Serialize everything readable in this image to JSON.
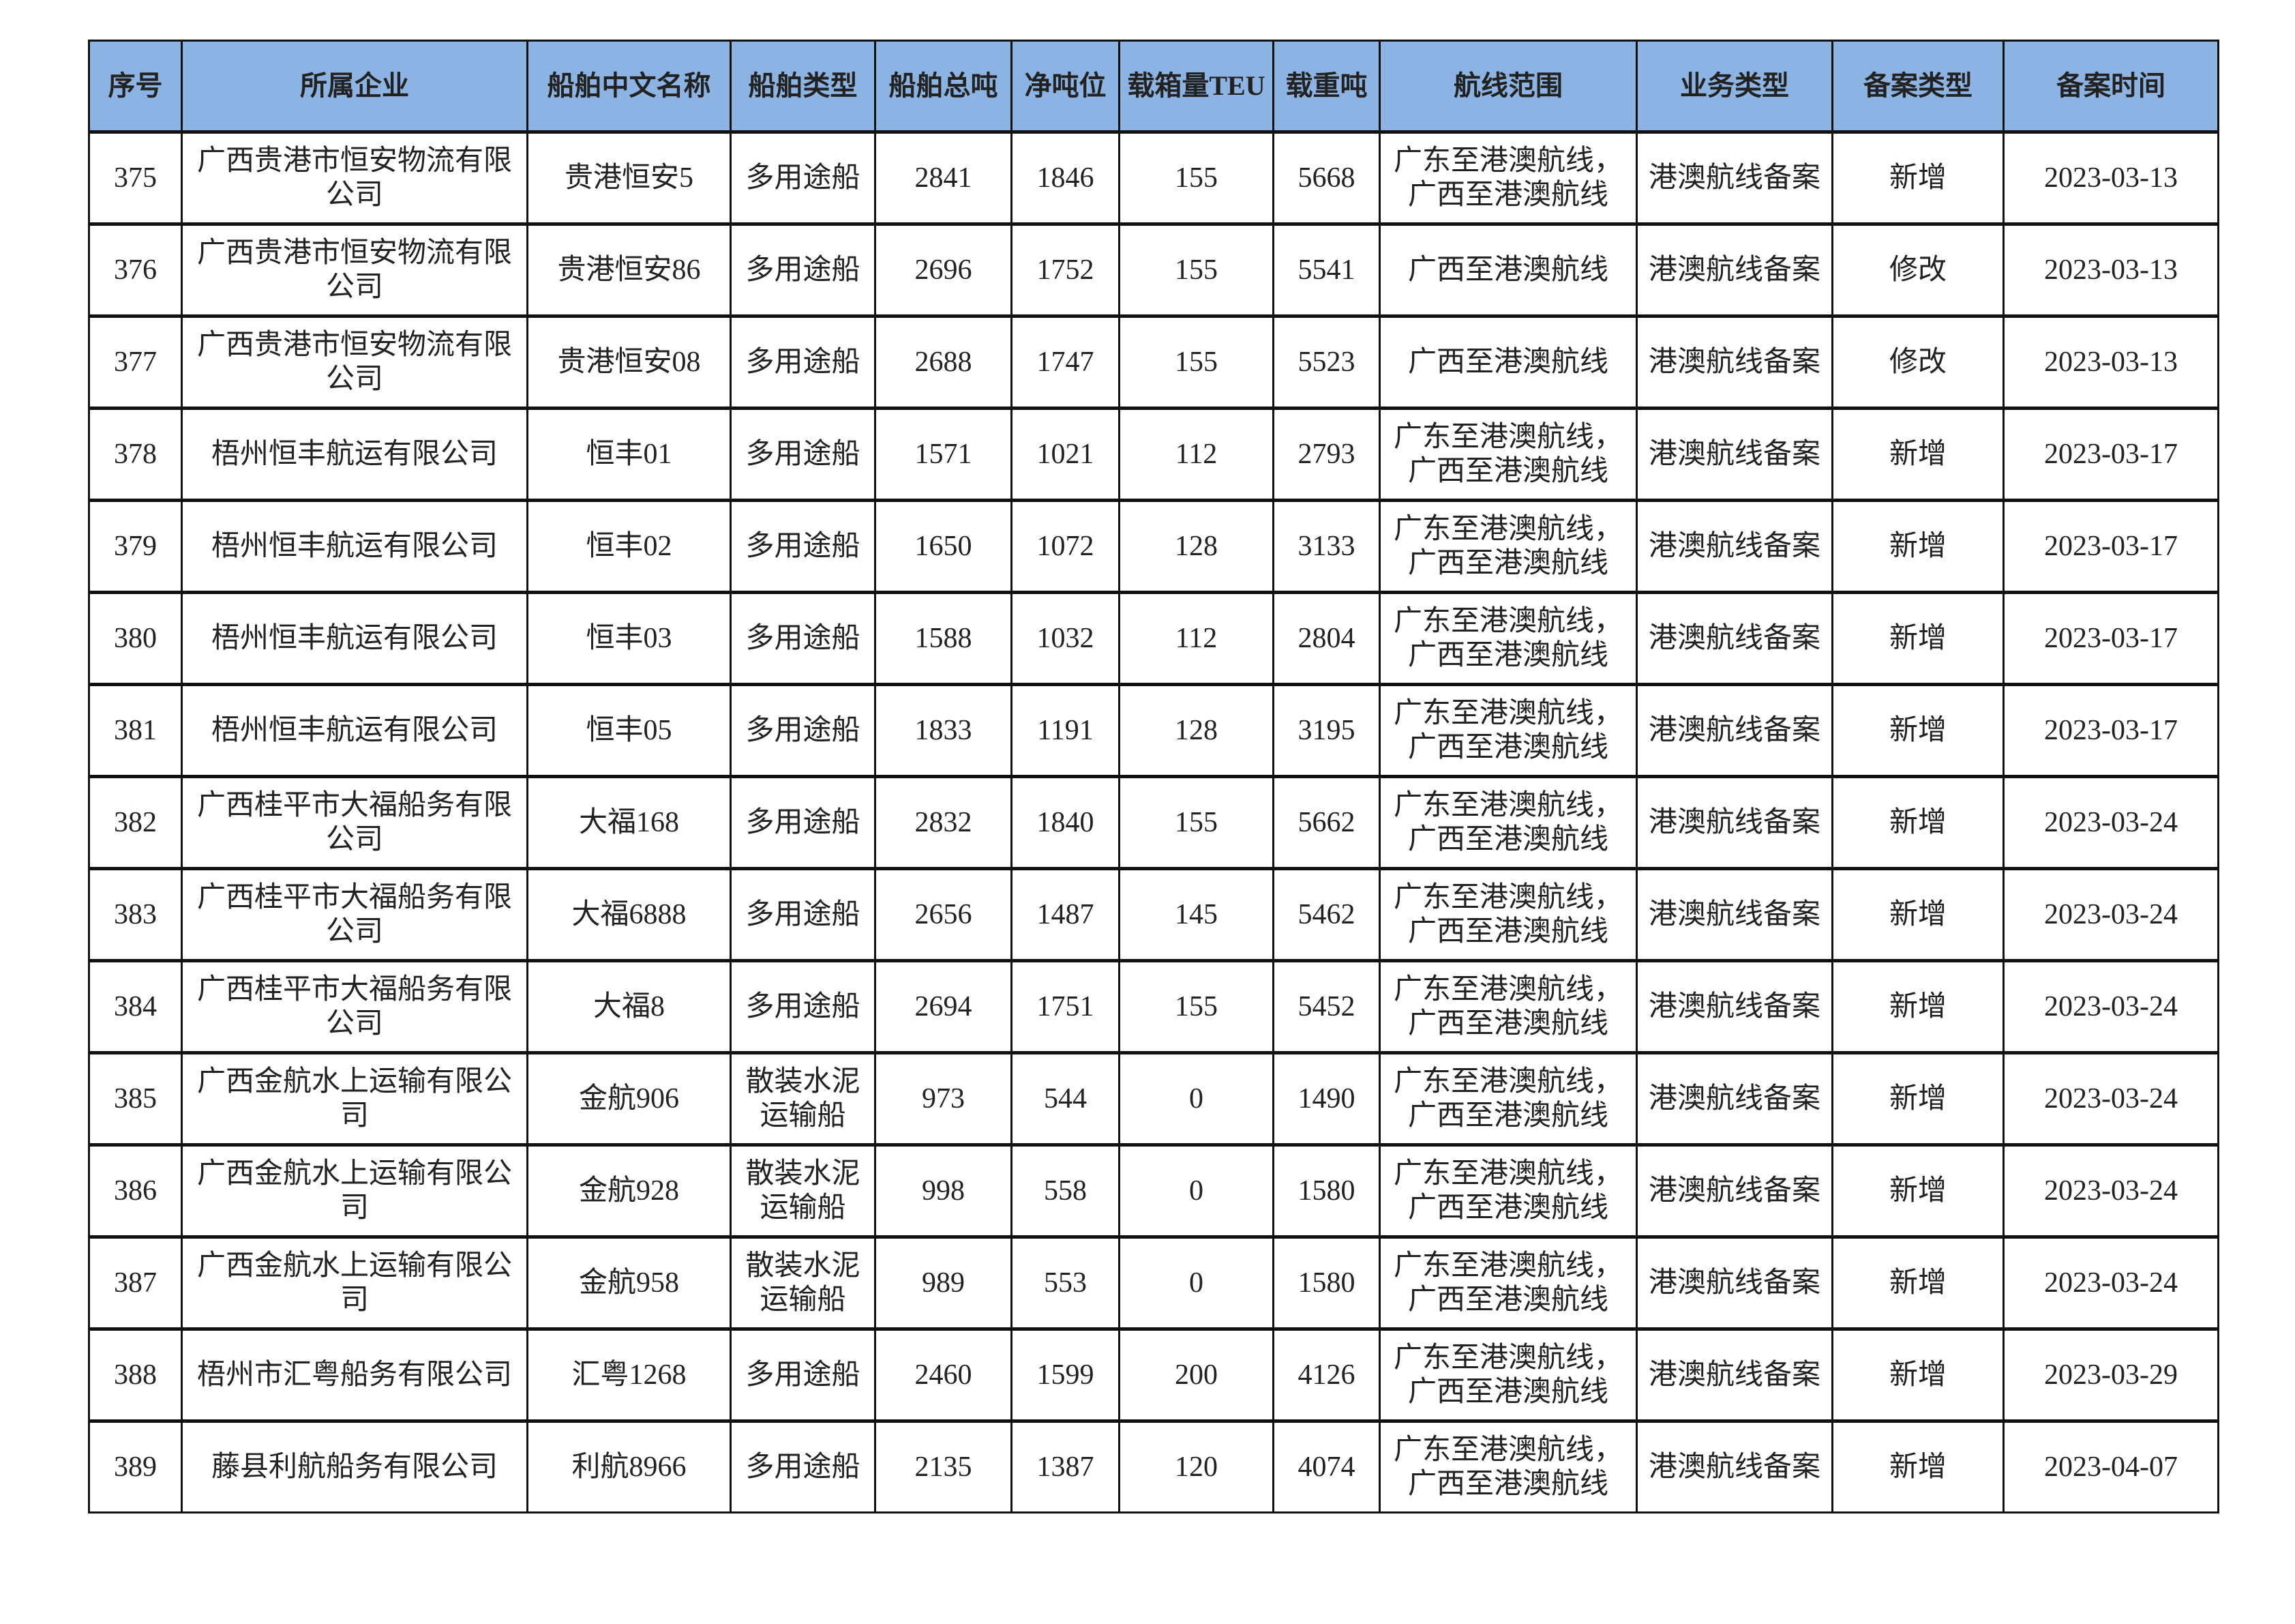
{
  "header_color": "#8DB3E2",
  "columns": [
    "序号",
    "所属企业",
    "船舶中文名称",
    "船舶类型",
    "船舶总吨",
    "净吨位",
    "载箱量TEU",
    "载重吨",
    "航线范围",
    "业务类型",
    "备案类型",
    "备案时间"
  ],
  "rows": [
    [
      "375",
      "广西贵港市恒安物流有限公司",
      "贵港恒安5",
      "多用途船",
      "2841",
      "1846",
      "155",
      "5668",
      "广东至港澳航线，广西至港澳航线",
      "港澳航线备案",
      "新增",
      "2023-03-13"
    ],
    [
      "376",
      "广西贵港市恒安物流有限公司",
      "贵港恒安86",
      "多用途船",
      "2696",
      "1752",
      "155",
      "5541",
      "广西至港澳航线",
      "港澳航线备案",
      "修改",
      "2023-03-13"
    ],
    [
      "377",
      "广西贵港市恒安物流有限公司",
      "贵港恒安08",
      "多用途船",
      "2688",
      "1747",
      "155",
      "5523",
      "广西至港澳航线",
      "港澳航线备案",
      "修改",
      "2023-03-13"
    ],
    [
      "378",
      "梧州恒丰航运有限公司",
      "恒丰01",
      "多用途船",
      "1571",
      "1021",
      "112",
      "2793",
      "广东至港澳航线，广西至港澳航线",
      "港澳航线备案",
      "新增",
      "2023-03-17"
    ],
    [
      "379",
      "梧州恒丰航运有限公司",
      "恒丰02",
      "多用途船",
      "1650",
      "1072",
      "128",
      "3133",
      "广东至港澳航线，广西至港澳航线",
      "港澳航线备案",
      "新增",
      "2023-03-17"
    ],
    [
      "380",
      "梧州恒丰航运有限公司",
      "恒丰03",
      "多用途船",
      "1588",
      "1032",
      "112",
      "2804",
      "广东至港澳航线，广西至港澳航线",
      "港澳航线备案",
      "新增",
      "2023-03-17"
    ],
    [
      "381",
      "梧州恒丰航运有限公司",
      "恒丰05",
      "多用途船",
      "1833",
      "1191",
      "128",
      "3195",
      "广东至港澳航线，广西至港澳航线",
      "港澳航线备案",
      "新增",
      "2023-03-17"
    ],
    [
      "382",
      "广西桂平市大福船务有限公司",
      "大福168",
      "多用途船",
      "2832",
      "1840",
      "155",
      "5662",
      "广东至港澳航线，广西至港澳航线",
      "港澳航线备案",
      "新增",
      "2023-03-24"
    ],
    [
      "383",
      "广西桂平市大福船务有限公司",
      "大福6888",
      "多用途船",
      "2656",
      "1487",
      "145",
      "5462",
      "广东至港澳航线，广西至港澳航线",
      "港澳航线备案",
      "新增",
      "2023-03-24"
    ],
    [
      "384",
      "广西桂平市大福船务有限公司",
      "大福8",
      "多用途船",
      "2694",
      "1751",
      "155",
      "5452",
      "广东至港澳航线，广西至港澳航线",
      "港澳航线备案",
      "新增",
      "2023-03-24"
    ],
    [
      "385",
      "广西金航水上运输有限公司",
      "金航906",
      "散装水泥运输船",
      "973",
      "544",
      "0",
      "1490",
      "广东至港澳航线，广西至港澳航线",
      "港澳航线备案",
      "新增",
      "2023-03-24"
    ],
    [
      "386",
      "广西金航水上运输有限公司",
      "金航928",
      "散装水泥运输船",
      "998",
      "558",
      "0",
      "1580",
      "广东至港澳航线，广西至港澳航线",
      "港澳航线备案",
      "新增",
      "2023-03-24"
    ],
    [
      "387",
      "广西金航水上运输有限公司",
      "金航958",
      "散装水泥运输船",
      "989",
      "553",
      "0",
      "1580",
      "广东至港澳航线，广西至港澳航线",
      "港澳航线备案",
      "新增",
      "2023-03-24"
    ],
    [
      "388",
      "梧州市汇粤船务有限公司",
      "汇粤1268",
      "多用途船",
      "2460",
      "1599",
      "200",
      "4126",
      "广东至港澳航线，广西至港澳航线",
      "港澳航线备案",
      "新增",
      "2023-03-29"
    ],
    [
      "389",
      "藤县利航船务有限公司",
      "利航8966",
      "多用途船",
      "2135",
      "1387",
      "120",
      "4074",
      "广东至港澳航线，广西至港澳航线",
      "港澳航线备案",
      "新增",
      "2023-04-07"
    ]
  ]
}
